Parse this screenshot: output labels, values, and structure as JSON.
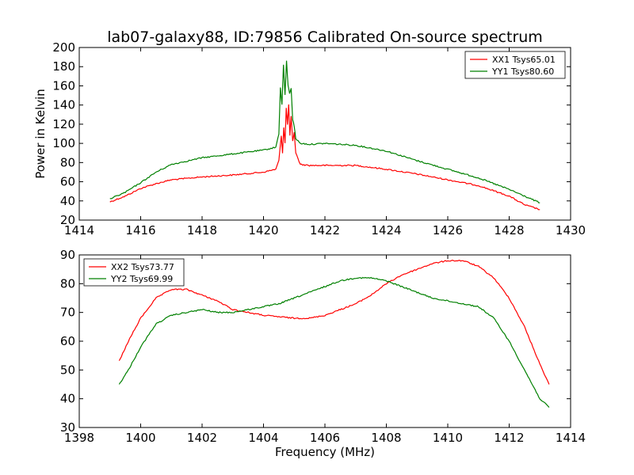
{
  "title": "lab07-galaxy88, ID:79856 Calibrated On-source spectrum",
  "colors": {
    "xx": "#ff0000",
    "yy": "#008000"
  },
  "chart_data": [
    {
      "type": "line",
      "ylabel": "Power in Kelvin",
      "xlim": [
        1414,
        1430
      ],
      "ylim": [
        20,
        200
      ],
      "xticks": [
        1414,
        1416,
        1418,
        1420,
        1422,
        1424,
        1426,
        1428,
        1430
      ],
      "yticks": [
        20,
        40,
        60,
        80,
        100,
        120,
        140,
        160,
        180,
        200
      ],
      "legend": "top-right",
      "series": [
        {
          "name": "XX1 Tsys65.01",
          "color": "#ff0000",
          "points": [
            [
              1415.0,
              39
            ],
            [
              1415.5,
              45
            ],
            [
              1416.0,
              53
            ],
            [
              1416.5,
              58
            ],
            [
              1417.0,
              62
            ],
            [
              1418.0,
              65
            ],
            [
              1419.0,
              67
            ],
            [
              1420.0,
              70
            ],
            [
              1420.4,
              73
            ],
            [
              1420.5,
              82
            ],
            [
              1420.58,
              108
            ],
            [
              1420.62,
              90
            ],
            [
              1420.66,
              117
            ],
            [
              1420.7,
              100
            ],
            [
              1420.74,
              137
            ],
            [
              1420.78,
              120
            ],
            [
              1420.82,
              140
            ],
            [
              1420.86,
              108
            ],
            [
              1420.9,
              128
            ],
            [
              1420.95,
              102
            ],
            [
              1421.0,
              112
            ],
            [
              1421.05,
              90
            ],
            [
              1421.2,
              78
            ],
            [
              1421.5,
              77
            ],
            [
              1422.0,
              77
            ],
            [
              1423.0,
              77
            ],
            [
              1424.0,
              73
            ],
            [
              1425.0,
              68
            ],
            [
              1426.0,
              62
            ],
            [
              1427.0,
              56
            ],
            [
              1428.0,
              45
            ],
            [
              1428.5,
              36
            ],
            [
              1429.0,
              31
            ]
          ]
        },
        {
          "name": "YY1 Tsys80.60",
          "color": "#008000",
          "points": [
            [
              1415.0,
              42
            ],
            [
              1415.5,
              49
            ],
            [
              1416.0,
              59
            ],
            [
              1416.5,
              70
            ],
            [
              1417.0,
              78
            ],
            [
              1418.0,
              85
            ],
            [
              1419.0,
              89
            ],
            [
              1420.0,
              93
            ],
            [
              1420.4,
              96
            ],
            [
              1420.5,
              110
            ],
            [
              1420.55,
              158
            ],
            [
              1420.6,
              140
            ],
            [
              1420.65,
              182
            ],
            [
              1420.7,
              150
            ],
            [
              1420.75,
              186
            ],
            [
              1420.8,
              160
            ],
            [
              1420.85,
              152
            ],
            [
              1420.9,
              158
            ],
            [
              1420.95,
              125
            ],
            [
              1421.0,
              118
            ],
            [
              1421.05,
              105
            ],
            [
              1421.2,
              100
            ],
            [
              1421.5,
              99
            ],
            [
              1422.0,
              100
            ],
            [
              1423.0,
              98
            ],
            [
              1424.0,
              92
            ],
            [
              1425.0,
              82
            ],
            [
              1426.0,
              73
            ],
            [
              1427.0,
              64
            ],
            [
              1428.0,
              52
            ],
            [
              1428.5,
              45
            ],
            [
              1429.0,
              38
            ]
          ]
        }
      ]
    },
    {
      "type": "line",
      "xlabel": "Frequency (MHz)",
      "xlim": [
        1398,
        1414
      ],
      "ylim": [
        30,
        90
      ],
      "xticks": [
        1398,
        1400,
        1402,
        1404,
        1406,
        1408,
        1410,
        1412,
        1414
      ],
      "yticks": [
        30,
        40,
        50,
        60,
        70,
        80,
        90
      ],
      "legend": "top-left",
      "series": [
        {
          "name": "XX2 Tsys73.77",
          "color": "#ff0000",
          "points": [
            [
              1399.3,
              53
            ],
            [
              1399.6,
              60
            ],
            [
              1400.0,
              68
            ],
            [
              1400.5,
              75
            ],
            [
              1401.0,
              78
            ],
            [
              1401.5,
              78
            ],
            [
              1402.0,
              76
            ],
            [
              1402.5,
              74
            ],
            [
              1403.0,
              71
            ],
            [
              1403.5,
              70
            ],
            [
              1404.0,
              69
            ],
            [
              1405.0,
              68
            ],
            [
              1405.5,
              68
            ],
            [
              1406.0,
              69
            ],
            [
              1406.5,
              71
            ],
            [
              1407.0,
              73
            ],
            [
              1407.5,
              76
            ],
            [
              1408.0,
              80
            ],
            [
              1408.5,
              83
            ],
            [
              1409.0,
              85
            ],
            [
              1409.5,
              87
            ],
            [
              1410.0,
              88
            ],
            [
              1410.5,
              88
            ],
            [
              1411.0,
              86
            ],
            [
              1411.5,
              82
            ],
            [
              1412.0,
              75
            ],
            [
              1412.5,
              65
            ],
            [
              1413.0,
              52
            ],
            [
              1413.3,
              45
            ]
          ]
        },
        {
          "name": "YY2 Tsys69.99",
          "color": "#008000",
          "points": [
            [
              1399.3,
              45
            ],
            [
              1399.6,
              50
            ],
            [
              1400.0,
              58
            ],
            [
              1400.5,
              66
            ],
            [
              1401.0,
              69
            ],
            [
              1401.5,
              70
            ],
            [
              1402.0,
              71
            ],
            [
              1402.5,
              70
            ],
            [
              1403.0,
              70
            ],
            [
              1403.5,
              71
            ],
            [
              1404.0,
              72
            ],
            [
              1404.5,
              73
            ],
            [
              1405.0,
              75
            ],
            [
              1405.5,
              77
            ],
            [
              1406.0,
              79
            ],
            [
              1406.5,
              81
            ],
            [
              1407.0,
              82
            ],
            [
              1407.5,
              82
            ],
            [
              1408.0,
              81
            ],
            [
              1408.5,
              79
            ],
            [
              1409.0,
              77
            ],
            [
              1409.5,
              75
            ],
            [
              1410.0,
              74
            ],
            [
              1410.5,
              73
            ],
            [
              1411.0,
              72
            ],
            [
              1411.5,
              68
            ],
            [
              1412.0,
              60
            ],
            [
              1412.5,
              50
            ],
            [
              1413.0,
              40
            ],
            [
              1413.3,
              37
            ]
          ]
        }
      ]
    }
  ]
}
